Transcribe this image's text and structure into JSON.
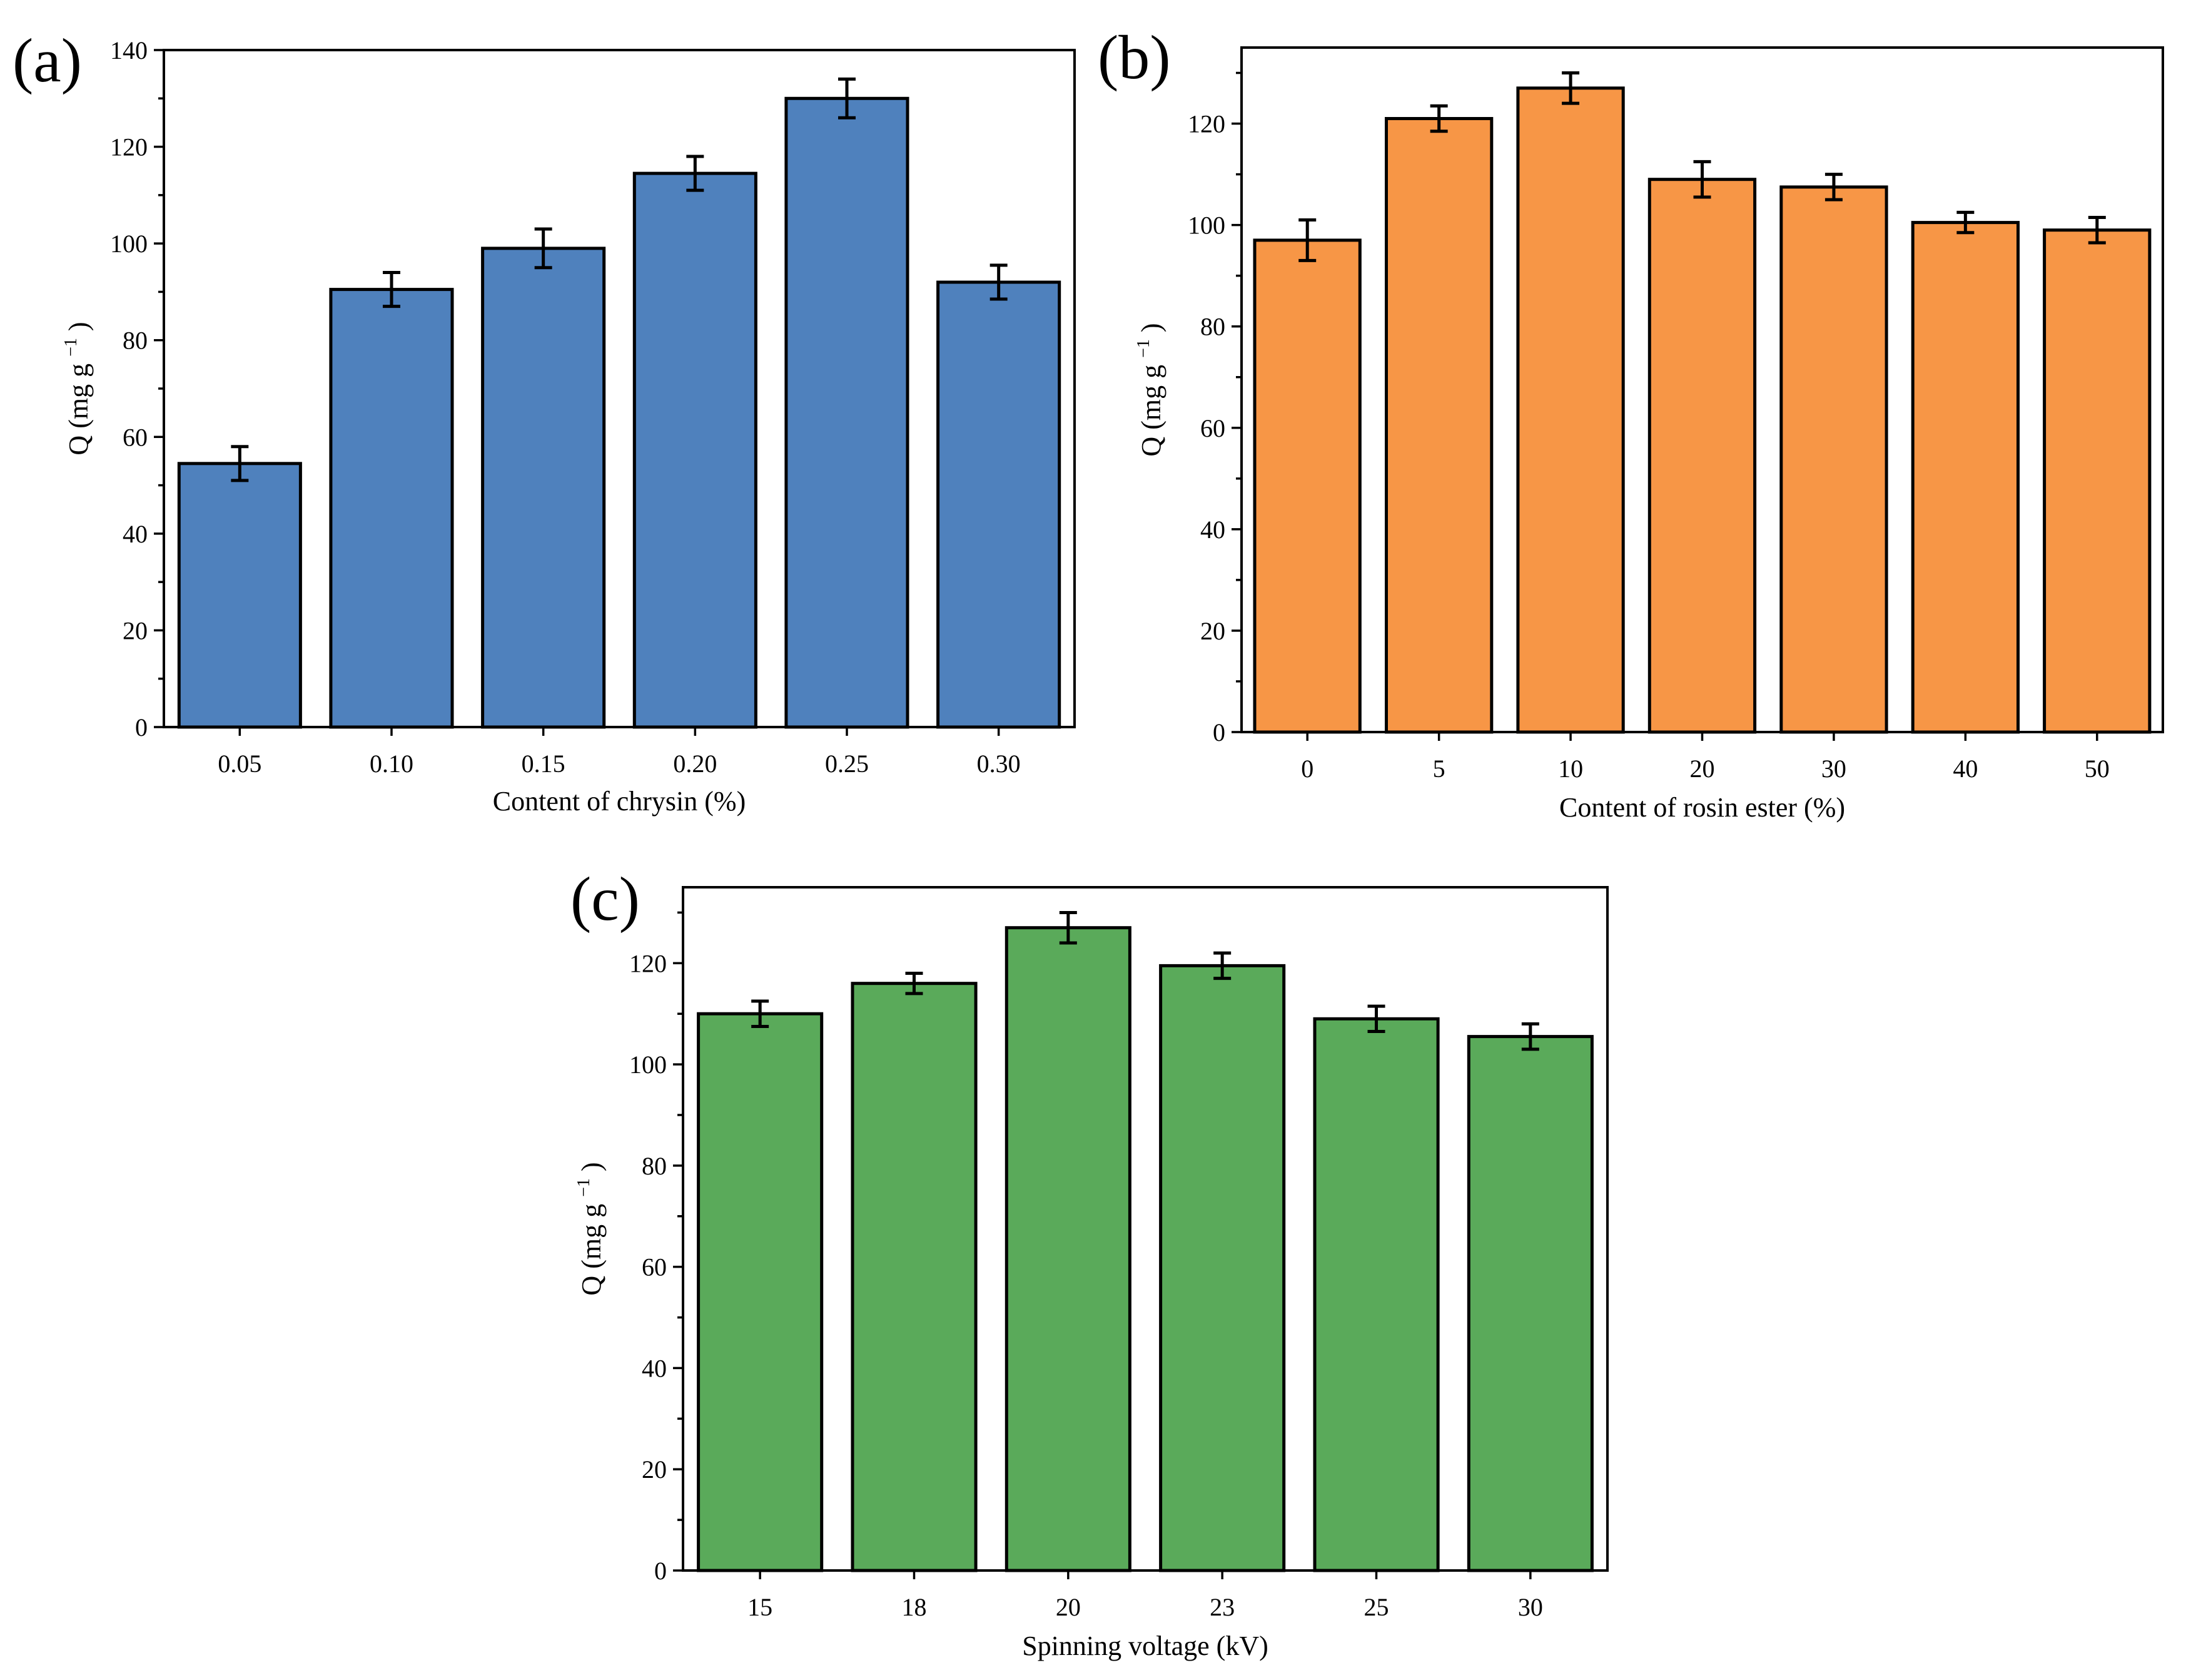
{
  "figure": {
    "panels": [
      "(a)",
      "(b)",
      "(c)"
    ]
  },
  "chart_data": [
    {
      "panel_label": "(a)",
      "type": "bar",
      "title": "",
      "xlabel": "Content of chrysin (%)",
      "ylabel": "Q (mg g",
      "ylabel_superscript": "−1",
      "ylabel_suffix": ")",
      "categories": [
        "0.05",
        "0.10",
        "0.15",
        "0.20",
        "0.25",
        "0.30"
      ],
      "values": [
        54.5,
        90.5,
        99,
        114.5,
        130,
        92
      ],
      "errors": [
        3.5,
        3.5,
        4,
        3.5,
        4,
        3.5
      ],
      "ylim": [
        0,
        140
      ],
      "yticks": [
        0,
        20,
        40,
        60,
        80,
        100,
        120,
        140
      ],
      "color": "#4f81bd",
      "grid": false
    },
    {
      "panel_label": "(b)",
      "type": "bar",
      "title": "",
      "xlabel": "Content of rosin ester (%)",
      "ylabel": "Q (mg g",
      "ylabel_superscript": "−1",
      "ylabel_suffix": ")",
      "categories": [
        "0",
        "5",
        "10",
        "20",
        "30",
        "40",
        "50"
      ],
      "values": [
        97,
        121,
        127,
        109,
        107.5,
        100.5,
        99
      ],
      "errors": [
        4,
        2.5,
        3,
        3.5,
        2.5,
        2,
        2.5
      ],
      "ylim": [
        0,
        135
      ],
      "yticks": [
        0,
        20,
        40,
        60,
        80,
        100,
        120
      ],
      "color": "#f79646",
      "grid": false
    },
    {
      "panel_label": "(c)",
      "type": "bar",
      "title": "",
      "xlabel": "Spinning voltage (kV)",
      "ylabel": "Q (mg g",
      "ylabel_superscript": "−1",
      "ylabel_suffix": ")",
      "categories": [
        "15",
        "18",
        "20",
        "23",
        "25",
        "30"
      ],
      "values": [
        110,
        116,
        127,
        119.5,
        109,
        105.5
      ],
      "errors": [
        2.5,
        2,
        3,
        2.5,
        2.5,
        2.5
      ],
      "ylim": [
        0,
        135
      ],
      "yticks": [
        0,
        20,
        40,
        60,
        80,
        100,
        120
      ],
      "color": "#5aaa5a",
      "grid": false
    }
  ]
}
